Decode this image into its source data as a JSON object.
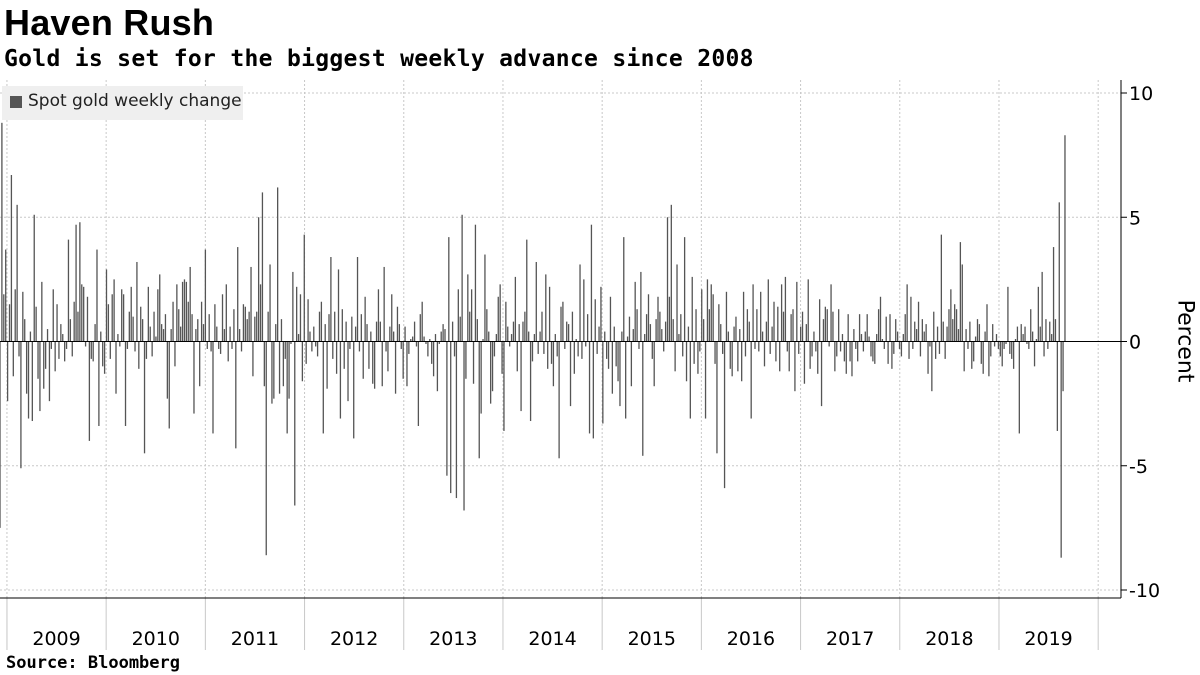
{
  "title": "Haven Rush",
  "subtitle": "Gold is set for the biggest weekly advance since 2008",
  "source": "Source: Bloomberg",
  "colors": {
    "bar": "#555555",
    "grid": "#c8c8c8",
    "axis": "#000000"
  },
  "chart_data": {
    "type": "bar",
    "ylabel": "Percent",
    "ylim": [
      -10,
      10
    ],
    "y_ticks": [
      10,
      5,
      0,
      -5,
      -10
    ],
    "y_tick_labels": [
      "10",
      "5",
      "0",
      "-5",
      "-10"
    ],
    "x_range": [
      2008.93,
      2020.23
    ],
    "x_axis_labels": [
      "2009",
      "2010",
      "2011",
      "2012",
      "2013",
      "2014",
      "2015",
      "2016",
      "2017",
      "2018",
      "2019"
    ],
    "grid": true,
    "legend": {
      "position": "top-left",
      "entries": [
        "Spot gold weekly change"
      ]
    },
    "series": [
      {
        "name": "Spot gold weekly change",
        "x_start": 2008.93,
        "x_step_years": 0.01917,
        "values": [
          -7.5,
          8.8,
          1.9,
          3.7,
          -2.4,
          1.5,
          6.7,
          -1.4,
          2.1,
          5.5,
          -0.6,
          -5.1,
          2.0,
          0.9,
          -2.1,
          -3.1,
          0.4,
          -3.2,
          5.1,
          1.4,
          -1.5,
          -2.8,
          2.4,
          -1.9,
          -1.1,
          0.5,
          -2.4,
          -0.3,
          2.1,
          -1.2,
          1.5,
          -0.7,
          0.7,
          0.3,
          -0.8,
          -0.3,
          4.1,
          0.9,
          -0.6,
          1.6,
          4.7,
          1.2,
          4.8,
          2.3,
          2.2,
          -0.2,
          1.8,
          -4.0,
          -0.7,
          -0.8,
          0.7,
          3.7,
          -3.4,
          0.4,
          -1.0,
          -1.3,
          2.9,
          1.5,
          -0.7,
          1.9,
          2.5,
          -2.1,
          0.3,
          -0.2,
          2.1,
          1.9,
          -3.4,
          -0.3,
          1.2,
          2.2,
          1.0,
          -0.4,
          3.2,
          -1.1,
          1.4,
          0.9,
          -4.5,
          -0.7,
          2.2,
          0.6,
          -0.6,
          1.2,
          0.2,
          2.1,
          2.7,
          0.7,
          0.5,
          1.1,
          -2.3,
          -3.5,
          0.5,
          1.6,
          -1.0,
          2.3,
          1.3,
          0.6,
          2.4,
          2.5,
          2.4,
          1.6,
          3.0,
          1.1,
          -2.9,
          0.5,
          0.9,
          -1.8,
          1.6,
          0.7,
          3.7,
          -0.3,
          1.1,
          -0.4,
          -3.7,
          1.5,
          0.6,
          -0.3,
          -0.5,
          1.9,
          0.5,
          2.3,
          -0.8,
          0.6,
          -0.3,
          1.3,
          -4.3,
          3.8,
          0.5,
          -0.4,
          1.5,
          1.4,
          0.9,
          1.2,
          3.0,
          -1.4,
          1.0,
          1.2,
          5.0,
          2.3,
          6.0,
          -1.8,
          -8.6,
          1.2,
          3.1,
          -2.5,
          -2.3,
          0.7,
          6.2,
          -2.1,
          0.9,
          -1.8,
          -0.7,
          -3.7,
          -2.3,
          -0.1,
          2.8,
          -6.6,
          2.2,
          0.3,
          1.9,
          -1.6,
          4.3,
          -0.9,
          1.7,
          0.4,
          -0.4,
          0.6,
          -0.2,
          -0.6,
          1.2,
          1.6,
          -3.7,
          0.7,
          -1.9,
          1.1,
          3.4,
          -0.7,
          1.2,
          -1.3,
          2.9,
          -3.1,
          1.3,
          -1.1,
          0.8,
          -2.4,
          -0.3,
          1.0,
          -3.9,
          0.6,
          3.4,
          -0.4,
          1.1,
          -1.5,
          1.8,
          0.7,
          -1.1,
          0.4,
          -1.7,
          -1.9,
          0.8,
          2.1,
          0.8,
          -1.8,
          3.0,
          -0.4,
          -1.2,
          0.6,
          1.9,
          0.4,
          -2.1,
          1.4,
          0.7,
          -0.3,
          -1.5,
          0.6,
          -1.8,
          -0.5,
          0.1,
          0.2,
          0.8,
          -0.2,
          -3.4,
          1.1,
          1.6,
          0.2,
          -0.1,
          -0.6,
          0.1,
          -0.9,
          -1.4,
          0.3,
          -2.0,
          -0.1,
          0.4,
          0.7,
          0.5,
          -5.4,
          4.2,
          -6.1,
          0.8,
          -0.6,
          -6.3,
          2.1,
          1.0,
          5.1,
          -6.8,
          -1.5,
          2.7,
          1.2,
          2.1,
          -1.7,
          4.7,
          0.9,
          -4.7,
          -2.9,
          0.1,
          3.5,
          1.3,
          0.4,
          -2.5,
          -2.0,
          -0.6,
          0.3,
          1.8,
          2.3,
          -1.3,
          -3.6,
          1.6,
          0.6,
          -0.2,
          0.3,
          0.8,
          2.6,
          -1.2,
          0.7,
          -2.8,
          0.8,
          1.2,
          4.1,
          0.4,
          -3.2,
          -0.8,
          0.3,
          3.2,
          -0.5,
          0.4,
          1.2,
          -0.5,
          2.7,
          -1.1,
          2.2,
          -0.9,
          -1.8,
          0.3,
          -0.6,
          -4.7,
          1.4,
          1.6,
          -0.3,
          0.8,
          0.7,
          -2.6,
          1.2,
          -1.3,
          0.1,
          -0.6,
          3.1,
          -0.7,
          2.5,
          -0.2,
          1.1,
          -3.7,
          4.7,
          -3.9,
          1.7,
          -0.5,
          0.6,
          2.2,
          -3.3,
          0.4,
          -0.7,
          -1.1,
          1.8,
          -2.1,
          0.6,
          -1.0,
          -1.6,
          -2.6,
          0.4,
          4.2,
          -3.1,
          0.2,
          1.0,
          -1.8,
          0.5,
          2.4,
          1.3,
          -0.3,
          2.8,
          -4.6,
          0.3,
          1.1,
          1.9,
          0.7,
          -0.7,
          -1.8,
          0.9,
          1.8,
          1.2,
          0.5,
          -0.4,
          0.8,
          5.0,
          1.8,
          5.5,
          0.9,
          -1.2,
          3.1,
          0.3,
          1.1,
          -0.6,
          4.2,
          -1.6,
          0.6,
          -3.1,
          2.6,
          -0.9,
          1.3,
          -1.3,
          -0.4,
          2.1,
          0.9,
          -3.1,
          2.5,
          1.3,
          2.3,
          1.9,
          -0.9,
          -4.5,
          1.5,
          0.7,
          -0.5,
          -5.9,
          2.0,
          0.4,
          -1.1,
          -1.4,
          0.6,
          1.0,
          -1.2,
          0.5,
          -1.6,
          2.0,
          -0.6,
          1.3,
          0.8,
          -3.1,
          2.3,
          -0.3,
          1.3,
          -0.4,
          2.0,
          0.4,
          -1.0,
          0.8,
          2.5,
          -0.5,
          0.6,
          1.6,
          -0.8,
          1.4,
          -1.2,
          2.3,
          1.2,
          2.6,
          -0.4,
          -1.2,
          1.1,
          1.3,
          -2.0,
          2.4,
          -0.5,
          0.6,
          1.2,
          -1.7,
          0.7,
          2.5,
          -1.1,
          -0.6,
          0.4,
          -0.4,
          -1.3,
          1.7,
          -2.6,
          0.9,
          1.4,
          1.3,
          -0.2,
          2.3,
          1.2,
          -1.2,
          -0.6,
          1.3,
          -0.4,
          0.3,
          -0.8,
          -1.3,
          1.1,
          -0.8,
          -1.4,
          0.5,
          -0.3,
          -0.8,
          1.1,
          0.3,
          -0.4,
          0.4,
          1.1,
          0.2,
          -0.6,
          -0.8,
          -0.9,
          0.3,
          1.3,
          1.8,
          0.1,
          -0.3,
          1.0,
          -0.9,
          1.1,
          -1.1,
          -0.5,
          0.9,
          0.4,
          -0.3,
          -0.6,
          0.3,
          1.1,
          2.3,
          -0.7,
          1.8,
          -0.3,
          0.8,
          0.5,
          1.6,
          -0.6,
          0.9,
          0.4,
          0.7,
          -1.3,
          -0.2,
          -2.0,
          1.2,
          -0.7,
          0.6,
          -0.5,
          4.3,
          0.8,
          -0.7,
          0.6,
          1.3,
          2.1,
          0.9,
          1.5,
          1.3,
          0.5,
          4.0,
          3.1,
          -1.2,
          0.5,
          -0.3,
          0.8,
          -1.1,
          -0.8,
          0.2,
          0.9,
          0.7,
          -0.9,
          -1.3,
          0.4,
          1.5,
          -1.4,
          -0.6,
          0.7,
          -0.2,
          0.3,
          -0.3,
          -0.6,
          -1.0,
          -0.3,
          -0.1,
          2.2,
          -0.5,
          -0.7,
          -1.1,
          0.1,
          0.6,
          -3.7,
          0.7,
          0.3,
          0.6,
          -0.1,
          -0.3,
          1.3,
          0.4,
          -1.0,
          0.1,
          2.2,
          0.6,
          2.8,
          -0.6,
          0.9,
          -0.3,
          0.8,
          0.3,
          3.8,
          0.9,
          -3.6,
          5.6,
          -8.7,
          -2.0,
          8.3
        ]
      }
    ]
  }
}
